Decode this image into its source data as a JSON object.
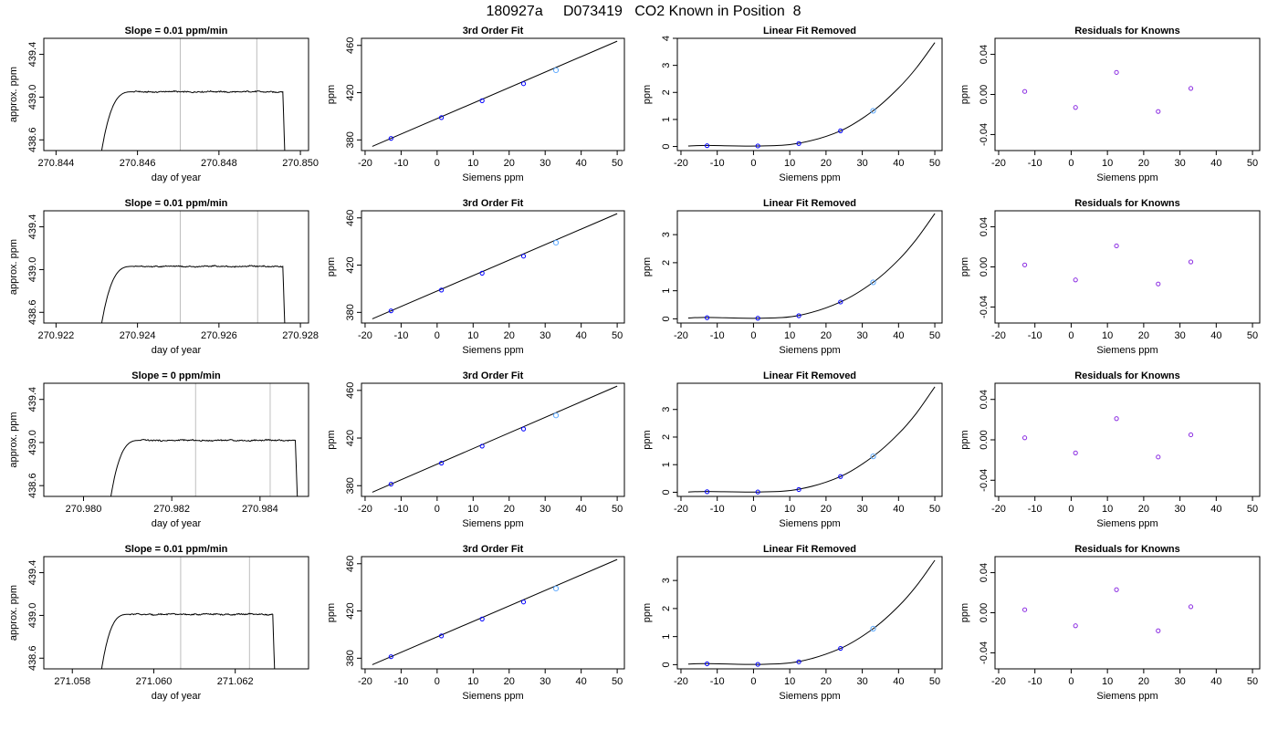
{
  "page_title": "180927a     D073419   CO2 Known in Position  8",
  "colors": {
    "axis": "#000000",
    "trace": "#000000",
    "marker": "#0000ff",
    "marker_alt": "#5da9ff",
    "residual": "#8a2be2",
    "vline": "#bebebe"
  },
  "chart_data": [
    {
      "row": 1,
      "col": 1,
      "type": "line",
      "title": "Slope =  0.01  ppm/min",
      "xlabel": "day of year",
      "ylabel": "approx. ppm",
      "xlim": [
        270.8437,
        270.8502
      ],
      "ylim": [
        438.5,
        439.55
      ],
      "xticks": [
        270.844,
        270.846,
        270.848,
        270.85
      ],
      "xtick_labels": [
        "270.844",
        "270.846",
        "270.848",
        "270.850"
      ],
      "yticks": [
        438.6,
        439.0,
        439.4
      ],
      "ytick_labels": [
        "438.6",
        "439.0",
        "439.4"
      ],
      "vlines": [
        270.84705,
        270.84893
      ],
      "trace": {
        "x_start": 270.8451,
        "x_end": 270.84962,
        "rise_end": 270.8459,
        "plateau": 439.05,
        "start_y": 438.45,
        "end_y": 438.45,
        "noise": 0.008
      }
    },
    {
      "row": 1,
      "col": 2,
      "type": "scatter",
      "title": "3rd Order Fit",
      "xlabel": "Siemens ppm",
      "ylabel": "ppm",
      "xlim": [
        -21,
        52
      ],
      "ylim": [
        371,
        466
      ],
      "xticks": [
        -20,
        -10,
        0,
        10,
        20,
        30,
        40,
        50
      ],
      "xtick_labels": [
        "-20",
        "-10",
        "0",
        "10",
        "20",
        "30",
        "40",
        "50"
      ],
      "yticks": [
        380,
        420,
        460
      ],
      "ytick_labels": [
        "380",
        "420",
        "460"
      ],
      "points": {
        "x": [
          -12.8,
          1.2,
          12.5,
          24.0,
          33.0
        ],
        "y": [
          381.3,
          398.9,
          413.2,
          427.6,
          439.0
        ]
      },
      "fit_line": {
        "x": [
          -18.0,
          50.0
        ],
        "y": [
          374.5,
          463.6
        ]
      }
    },
    {
      "row": 1,
      "col": 3,
      "type": "scatter",
      "title": "Linear Fit Removed",
      "xlabel": "Siemens ppm",
      "ylabel": "ppm",
      "xlim": [
        -21,
        52
      ],
      "ylim": [
        -0.15,
        4.0
      ],
      "xticks": [
        -20,
        -10,
        0,
        10,
        20,
        30,
        40,
        50
      ],
      "xtick_labels": [
        "-20",
        "-10",
        "0",
        "10",
        "20",
        "30",
        "40",
        "50"
      ],
      "yticks": [
        0,
        1,
        2,
        3,
        4
      ],
      "ytick_labels": [
        "0",
        "1",
        "2",
        "3",
        "4"
      ],
      "points": {
        "x": [
          -12.8,
          1.2,
          12.5,
          24.0,
          33.0
        ],
        "y": [
          0.03,
          0.02,
          0.11,
          0.58,
          1.32
        ]
      },
      "curve": {
        "x": [
          -18,
          -12.8,
          1.2,
          12.5,
          24.0,
          33.0,
          40,
          45,
          50
        ],
        "y": [
          0.02,
          0.04,
          0.02,
          0.12,
          0.58,
          1.32,
          2.16,
          2.92,
          3.84
        ]
      }
    },
    {
      "row": 1,
      "col": 4,
      "type": "scatter",
      "title": "Residuals for Knowns",
      "xlabel": "Siemens ppm",
      "ylabel": "ppm",
      "xlim": [
        -21,
        52
      ],
      "ylim": [
        -0.056,
        0.056
      ],
      "xticks": [
        -20,
        -10,
        0,
        10,
        20,
        30,
        40,
        50
      ],
      "xtick_labels": [
        "-20",
        "-10",
        "0",
        "10",
        "20",
        "30",
        "40",
        "50"
      ],
      "yticks": [
        -0.04,
        0.0,
        0.04
      ],
      "ytick_labels": [
        "-0.04",
        "0.00",
        "0.04"
      ],
      "points": {
        "x": [
          -12.8,
          1.2,
          12.5,
          24.0,
          33.0
        ],
        "y": [
          0.003,
          -0.013,
          0.022,
          -0.017,
          0.006
        ]
      }
    },
    {
      "row": 2,
      "col": 1,
      "type": "line",
      "title": "Slope =  0.01  ppm/min",
      "xlabel": "day of year",
      "ylabel": "approx. ppm",
      "xlim": [
        270.9217,
        270.9282
      ],
      "ylim": [
        438.5,
        439.55
      ],
      "xticks": [
        270.922,
        270.924,
        270.926,
        270.928
      ],
      "xtick_labels": [
        "270.922",
        "270.924",
        "270.926",
        "270.928"
      ],
      "yticks": [
        438.6,
        439.0,
        439.4
      ],
      "ytick_labels": [
        "438.6",
        "439.0",
        "439.4"
      ],
      "vlines": [
        270.92505,
        270.92695
      ],
      "trace": {
        "x_start": 270.9231,
        "x_end": 270.92762,
        "rise_end": 270.9239,
        "plateau": 439.03,
        "start_y": 438.45,
        "end_y": 438.45,
        "noise": 0.008
      }
    },
    {
      "row": 2,
      "col": 2,
      "type": "scatter",
      "title": "3rd Order Fit",
      "xlabel": "Siemens ppm",
      "ylabel": "ppm",
      "xlim": [
        -21,
        52
      ],
      "ylim": [
        371,
        466
      ],
      "xticks": [
        -20,
        -10,
        0,
        10,
        20,
        30,
        40,
        50
      ],
      "xtick_labels": [
        "-20",
        "-10",
        "0",
        "10",
        "20",
        "30",
        "40",
        "50"
      ],
      "yticks": [
        380,
        420,
        460
      ],
      "ytick_labels": [
        "380",
        "420",
        "460"
      ],
      "points": {
        "x": [
          -12.8,
          1.2,
          12.5,
          24.0,
          33.0
        ],
        "y": [
          381.3,
          398.9,
          413.2,
          427.6,
          439.0
        ]
      },
      "fit_line": {
        "x": [
          -18.0,
          50.0
        ],
        "y": [
          374.5,
          463.6
        ]
      }
    },
    {
      "row": 2,
      "col": 3,
      "type": "scatter",
      "title": "Linear Fit Removed",
      "xlabel": "Siemens ppm",
      "ylabel": "ppm",
      "xlim": [
        -21,
        52
      ],
      "ylim": [
        -0.15,
        3.85
      ],
      "xticks": [
        -20,
        -10,
        0,
        10,
        20,
        30,
        40,
        50
      ],
      "xtick_labels": [
        "-20",
        "-10",
        "0",
        "10",
        "20",
        "30",
        "40",
        "50"
      ],
      "yticks": [
        0,
        1,
        2,
        3
      ],
      "ytick_labels": [
        "0",
        "1",
        "2",
        "3"
      ],
      "points": {
        "x": [
          -12.8,
          1.2,
          12.5,
          24.0,
          33.0
        ],
        "y": [
          0.04,
          0.02,
          0.11,
          0.6,
          1.3
        ]
      },
      "curve": {
        "x": [
          -18,
          -12.8,
          1.2,
          12.5,
          24.0,
          33.0,
          40,
          45,
          50
        ],
        "y": [
          0.03,
          0.05,
          0.02,
          0.12,
          0.6,
          1.3,
          2.1,
          2.85,
          3.75
        ]
      }
    },
    {
      "row": 2,
      "col": 4,
      "type": "scatter",
      "title": "Residuals for Knowns",
      "xlabel": "Siemens ppm",
      "ylabel": "ppm",
      "xlim": [
        -21,
        52
      ],
      "ylim": [
        -0.056,
        0.056
      ],
      "xticks": [
        -20,
        -10,
        0,
        10,
        20,
        30,
        40,
        50
      ],
      "xtick_labels": [
        "-20",
        "-10",
        "0",
        "10",
        "20",
        "30",
        "40",
        "50"
      ],
      "yticks": [
        -0.04,
        0.0,
        0.04
      ],
      "ytick_labels": [
        "-0.04",
        "0.00",
        "0.04"
      ],
      "points": {
        "x": [
          -12.8,
          1.2,
          12.5,
          24.0,
          33.0
        ],
        "y": [
          0.002,
          -0.013,
          0.021,
          -0.017,
          0.005
        ]
      }
    },
    {
      "row": 3,
      "col": 1,
      "type": "line",
      "title": "Slope =  0  ppm/min",
      "xlabel": "day of year",
      "ylabel": "approx. ppm",
      "xlim": [
        270.9791,
        270.9851
      ],
      "ylim": [
        438.5,
        439.55
      ],
      "xticks": [
        270.98,
        270.982,
        270.984
      ],
      "xtick_labels": [
        "270.980",
        "270.982",
        "270.984"
      ],
      "yticks": [
        438.6,
        439.0,
        439.4
      ],
      "ytick_labels": [
        "438.6",
        "439.0",
        "439.4"
      ],
      "vlines": [
        270.98254,
        270.98423
      ],
      "trace": {
        "x_start": 270.9806,
        "x_end": 270.98485,
        "rise_end": 270.9813,
        "plateau": 439.02,
        "start_y": 438.45,
        "end_y": 438.45,
        "noise": 0.008
      }
    },
    {
      "row": 3,
      "col": 2,
      "type": "scatter",
      "title": "3rd Order Fit",
      "xlabel": "Siemens ppm",
      "ylabel": "ppm",
      "xlim": [
        -21,
        52
      ],
      "ylim": [
        371,
        466
      ],
      "xticks": [
        -20,
        -10,
        0,
        10,
        20,
        30,
        40,
        50
      ],
      "xtick_labels": [
        "-20",
        "-10",
        "0",
        "10",
        "20",
        "30",
        "40",
        "50"
      ],
      "yticks": [
        380,
        420,
        460
      ],
      "ytick_labels": [
        "380",
        "420",
        "460"
      ],
      "points": {
        "x": [
          -12.8,
          1.2,
          12.5,
          24.0,
          33.0
        ],
        "y": [
          381.3,
          398.9,
          413.2,
          427.6,
          439.0
        ]
      },
      "fit_line": {
        "x": [
          -18.0,
          50.0
        ],
        "y": [
          374.5,
          463.6
        ]
      }
    },
    {
      "row": 3,
      "col": 3,
      "type": "scatter",
      "title": "Linear Fit Removed",
      "xlabel": "Siemens ppm",
      "ylabel": "ppm",
      "xlim": [
        -21,
        52
      ],
      "ylim": [
        -0.15,
        3.95
      ],
      "xticks": [
        -20,
        -10,
        0,
        10,
        20,
        30,
        40,
        50
      ],
      "xtick_labels": [
        "-20",
        "-10",
        "0",
        "10",
        "20",
        "30",
        "40",
        "50"
      ],
      "yticks": [
        0,
        1,
        2,
        3
      ],
      "ytick_labels": [
        "0",
        "1",
        "2",
        "3"
      ],
      "points": {
        "x": [
          -12.8,
          1.2,
          12.5,
          24.0,
          33.0
        ],
        "y": [
          0.02,
          0.01,
          0.1,
          0.57,
          1.3
        ]
      },
      "curve": {
        "x": [
          -18,
          -12.8,
          1.2,
          12.5,
          24.0,
          33.0,
          40,
          45,
          50
        ],
        "y": [
          0.01,
          0.03,
          0.01,
          0.11,
          0.57,
          1.3,
          2.12,
          2.88,
          3.82
        ]
      }
    },
    {
      "row": 3,
      "col": 4,
      "type": "scatter",
      "title": "Residuals for Knowns",
      "xlabel": "Siemens ppm",
      "ylabel": "ppm",
      "xlim": [
        -21,
        52
      ],
      "ylim": [
        -0.056,
        0.056
      ],
      "xticks": [
        -20,
        -10,
        0,
        10,
        20,
        30,
        40,
        50
      ],
      "xtick_labels": [
        "-20",
        "-10",
        "0",
        "10",
        "20",
        "30",
        "40",
        "50"
      ],
      "yticks": [
        -0.04,
        0.0,
        0.04
      ],
      "ytick_labels": [
        "-0.04",
        "0.00",
        "0.04"
      ],
      "points": {
        "x": [
          -12.8,
          1.2,
          12.5,
          24.0,
          33.0
        ],
        "y": [
          0.002,
          -0.013,
          0.021,
          -0.017,
          0.005
        ]
      }
    },
    {
      "row": 4,
      "col": 1,
      "type": "line",
      "title": "Slope =  0.01  ppm/min",
      "xlabel": "day of year",
      "ylabel": "approx. ppm",
      "xlim": [
        271.0573,
        271.0638
      ],
      "ylim": [
        438.5,
        439.55
      ],
      "xticks": [
        271.058,
        271.06,
        271.062
      ],
      "xtick_labels": [
        "271.058",
        "271.060",
        "271.062"
      ],
      "yticks": [
        438.6,
        439.0,
        439.4
      ],
      "ytick_labels": [
        "438.6",
        "439.0",
        "439.4"
      ],
      "vlines": [
        271.06066,
        271.06235
      ],
      "trace": {
        "x_start": 271.0587,
        "x_end": 271.06297,
        "rise_end": 271.0594,
        "plateau": 439.01,
        "start_y": 438.45,
        "end_y": 438.45,
        "noise": 0.008
      }
    },
    {
      "row": 4,
      "col": 2,
      "type": "scatter",
      "title": "3rd Order Fit",
      "xlabel": "Siemens ppm",
      "ylabel": "ppm",
      "xlim": [
        -21,
        52
      ],
      "ylim": [
        371,
        466
      ],
      "xticks": [
        -20,
        -10,
        0,
        10,
        20,
        30,
        40,
        50
      ],
      "xtick_labels": [
        "-20",
        "-10",
        "0",
        "10",
        "20",
        "30",
        "40",
        "50"
      ],
      "yticks": [
        380,
        420,
        460
      ],
      "ytick_labels": [
        "380",
        "420",
        "460"
      ],
      "points": {
        "x": [
          -12.8,
          1.2,
          12.5,
          24.0,
          33.0
        ],
        "y": [
          381.3,
          398.9,
          413.2,
          427.6,
          439.0
        ]
      },
      "fit_line": {
        "x": [
          -18.0,
          50.0
        ],
        "y": [
          374.5,
          463.6
        ]
      }
    },
    {
      "row": 4,
      "col": 3,
      "type": "scatter",
      "title": "Linear Fit Removed",
      "xlabel": "Siemens ppm",
      "ylabel": "ppm",
      "xlim": [
        -21,
        52
      ],
      "ylim": [
        -0.15,
        3.85
      ],
      "xticks": [
        -20,
        -10,
        0,
        10,
        20,
        30,
        40,
        50
      ],
      "xtick_labels": [
        "-20",
        "-10",
        "0",
        "10",
        "20",
        "30",
        "40",
        "50"
      ],
      "yticks": [
        0,
        1,
        2,
        3
      ],
      "ytick_labels": [
        "0",
        "1",
        "2",
        "3"
      ],
      "points": {
        "x": [
          -12.8,
          1.2,
          12.5,
          24.0,
          33.0
        ],
        "y": [
          0.03,
          0.01,
          0.1,
          0.58,
          1.28
        ]
      },
      "curve": {
        "x": [
          -18,
          -12.8,
          1.2,
          12.5,
          24.0,
          33.0,
          40,
          45,
          50
        ],
        "y": [
          0.02,
          0.04,
          0.01,
          0.11,
          0.58,
          1.28,
          2.08,
          2.82,
          3.72
        ]
      }
    },
    {
      "row": 4,
      "col": 4,
      "type": "scatter",
      "title": "Residuals for Knowns",
      "xlabel": "Siemens ppm",
      "ylabel": "ppm",
      "xlim": [
        -21,
        52
      ],
      "ylim": [
        -0.056,
        0.056
      ],
      "xticks": [
        -20,
        -10,
        0,
        10,
        20,
        30,
        40,
        50
      ],
      "xtick_labels": [
        "-20",
        "-10",
        "0",
        "10",
        "20",
        "30",
        "40",
        "50"
      ],
      "yticks": [
        -0.04,
        0.0,
        0.04
      ],
      "ytick_labels": [
        "-0.04",
        "0.00",
        "0.04"
      ],
      "points": {
        "x": [
          -12.8,
          1.2,
          12.5,
          24.0,
          33.0
        ],
        "y": [
          0.003,
          -0.013,
          0.023,
          -0.018,
          0.006
        ]
      }
    }
  ]
}
